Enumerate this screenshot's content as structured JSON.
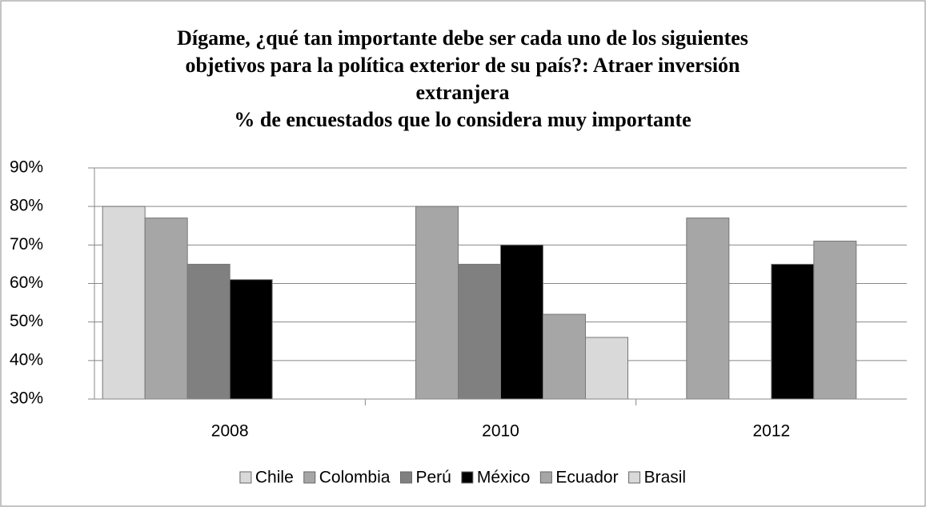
{
  "chart_data": {
    "type": "bar",
    "title": [
      "Dígame, ¿qué tan importante debe ser cada uno de los siguientes",
      "objetivos para la política exterior de su país?: Atraer inversión",
      "extranjera",
      "% de encuestados que lo considera muy importante"
    ],
    "categories": [
      "2008",
      "2010",
      "2012"
    ],
    "series": [
      {
        "name": "Chile",
        "color": "#d9d9d9",
        "values": [
          80,
          null,
          null
        ]
      },
      {
        "name": "Colombia",
        "color": "#a6a6a6",
        "values": [
          77,
          80,
          77
        ]
      },
      {
        "name": "Perú",
        "color": "#808080",
        "values": [
          65,
          65,
          null
        ]
      },
      {
        "name": "México",
        "color": "#000000",
        "values": [
          61,
          70,
          65
        ]
      },
      {
        "name": "Ecuador",
        "color": "#a6a6a6",
        "values": [
          null,
          52,
          71
        ]
      },
      {
        "name": "Brasil",
        "color": "#d9d9d9",
        "values": [
          null,
          46,
          null
        ]
      }
    ],
    "ylim": [
      30,
      90
    ],
    "yticks": [
      {
        "value": 30,
        "label": "30%"
      },
      {
        "value": 40,
        "label": "40%"
      },
      {
        "value": 50,
        "label": "50%"
      },
      {
        "value": 60,
        "label": "60%"
      },
      {
        "value": 70,
        "label": "70%"
      },
      {
        "value": 80,
        "label": "80%"
      },
      {
        "value": 90,
        "label": "90%"
      }
    ],
    "grid": true,
    "legend": "bottom"
  }
}
